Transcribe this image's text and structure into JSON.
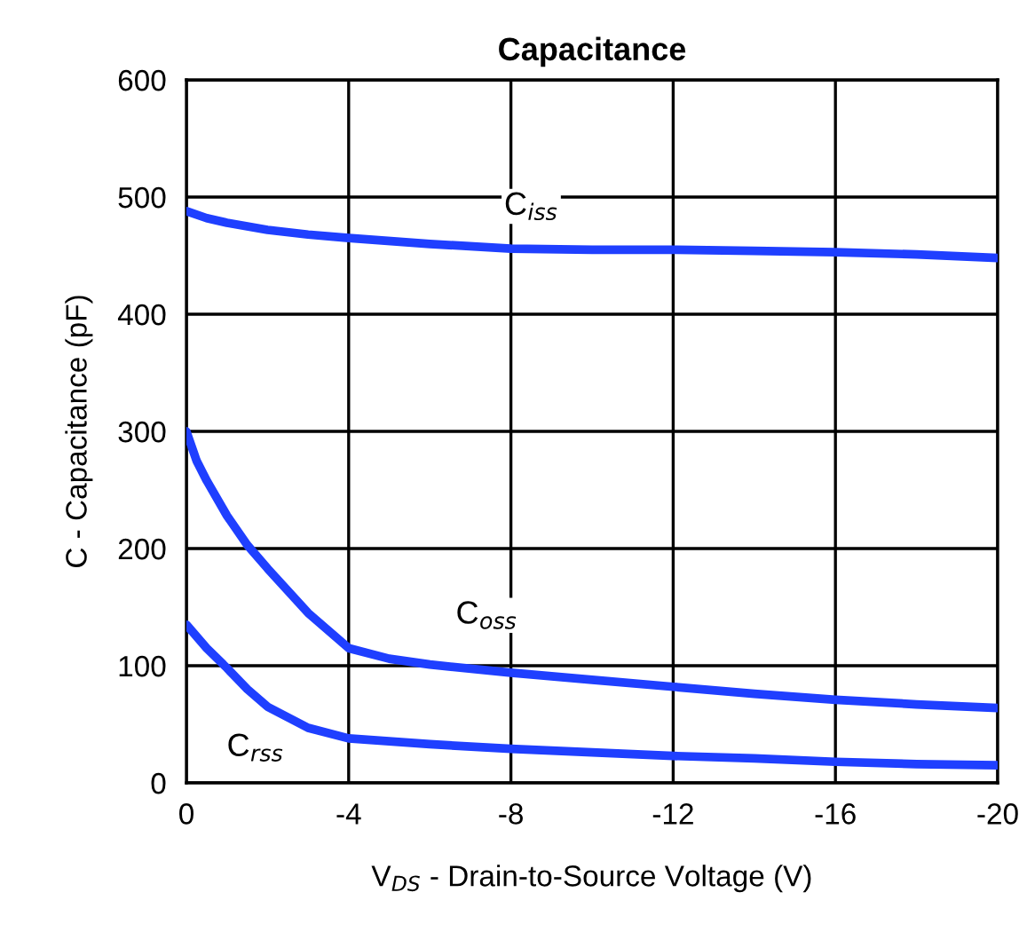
{
  "chart_data": {
    "type": "line",
    "title": "Capacitance",
    "xlabel": "V$_{DS}$ - Drain-to-Source Voltage (V)",
    "ylabel": "C - Capacitance (pF)",
    "xlim": [
      0,
      -20
    ],
    "ylim": [
      0,
      600
    ],
    "xticks": [
      0,
      -4,
      -8,
      -12,
      -16,
      -20
    ],
    "yticks": [
      0,
      100,
      200,
      300,
      400,
      500,
      600
    ],
    "grid": true,
    "line_style": "solid",
    "series": [
      {
        "color": "#1f3fff",
        "x": [
          0,
          -0.5,
          -1,
          -2,
          -3,
          -4,
          -6,
          -8,
          -10,
          -12,
          -14,
          -16,
          -18,
          -20
        ],
        "values": [
          488,
          482,
          478,
          472,
          468,
          465,
          460,
          456,
          455,
          455,
          454,
          453,
          451,
          448
        ]
      },
      {
        "color": "#1f3fff",
        "x": [
          0,
          -0.25,
          -0.5,
          -1,
          -1.5,
          -2,
          -3,
          -4,
          -5,
          -6,
          -8,
          -10,
          -12,
          -14,
          -16,
          -18,
          -20
        ],
        "values": [
          300,
          275,
          258,
          228,
          203,
          183,
          145,
          115,
          106,
          101,
          94,
          88,
          82,
          76,
          71,
          67,
          64
        ]
      },
      {
        "color": "#1f3fff",
        "x": [
          0,
          -0.5,
          -1,
          -1.5,
          -2,
          -3,
          -4,
          -6,
          -8,
          -10,
          -12,
          -14,
          -16,
          -18,
          -20
        ],
        "values": [
          135,
          115,
          98,
          80,
          65,
          47,
          38,
          33,
          29,
          26,
          23,
          21,
          18,
          16,
          15
        ]
      }
    ],
    "annotations": [
      {
        "text": "C$_{iss}$",
        "x": -8.5,
        "y": 492
      },
      {
        "text": "C$_{oss}$",
        "x": -7.4,
        "y": 143
      },
      {
        "text": "C$_{rss}$",
        "x": -1.7,
        "y": 30
      }
    ]
  }
}
